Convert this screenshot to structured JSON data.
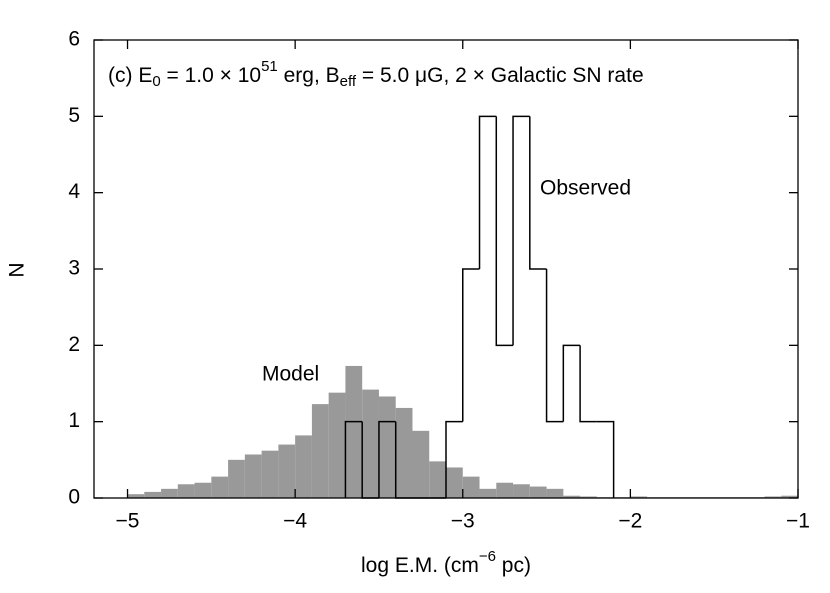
{
  "chart_data": {
    "type": "histogram",
    "annotation": [
      "(c) E",
      "0",
      " = 1.0 × 10",
      "51",
      " erg, B",
      "eff",
      " = 5.0 μG, 2 × Galactic SN rate"
    ],
    "xlabel": [
      "log E.M. (cm",
      "−6",
      " pc)"
    ],
    "ylabel": "N",
    "xlim": [
      -5.2,
      -1
    ],
    "ylim": [
      0,
      6
    ],
    "xticks": [
      {
        "value": -5,
        "label": "−5"
      },
      {
        "value": -4,
        "label": "−4"
      },
      {
        "value": -3,
        "label": "−3"
      },
      {
        "value": -2,
        "label": "−2"
      },
      {
        "value": -1,
        "label": "−1"
      }
    ],
    "yticks": [
      0,
      1,
      2,
      3,
      4,
      5,
      6
    ],
    "series": [
      {
        "name": "Model",
        "color": "#999999",
        "filled": true,
        "bins": [
          -5.0,
          -4.9,
          -4.8,
          -4.7,
          -4.6,
          -4.5,
          -4.4,
          -4.3,
          -4.2,
          -4.1,
          -4.0,
          -3.9,
          -3.8,
          -3.7,
          -3.6,
          -3.5,
          -3.4,
          -3.3,
          -3.2,
          -3.1,
          -3.0,
          -2.9,
          -2.8,
          -2.7,
          -2.6,
          -2.5,
          -2.4,
          -2.3,
          -2.2,
          -2.1,
          -2.0,
          -1.9,
          -1.8,
          -1.7,
          -1.6,
          -1.5,
          -1.4,
          -1.3,
          -1.2,
          -1.1,
          -1.0
        ],
        "values": [
          0.05,
          0.08,
          0.12,
          0.18,
          0.2,
          0.28,
          0.5,
          0.57,
          0.62,
          0.7,
          0.82,
          1.23,
          1.38,
          1.73,
          1.42,
          1.33,
          1.18,
          0.88,
          0.48,
          0.4,
          0.28,
          0.12,
          0.2,
          0.18,
          0.15,
          0.12,
          0.03,
          0.02,
          0.01,
          0.01,
          0.02,
          0.01,
          0.01,
          0.01,
          0.01,
          0.01,
          0.01,
          0.01,
          0.02,
          0.03
        ]
      },
      {
        "name": "Observed",
        "color": "#000000",
        "filled": false,
        "bins": [
          -3.7,
          -3.6,
          -3.5,
          -3.4,
          -3.3,
          -3.2,
          -3.1,
          -3.0,
          -2.9,
          -2.8,
          -2.7,
          -2.6,
          -2.5,
          -2.4,
          -2.3,
          -2.2,
          -2.1
        ],
        "values": [
          1,
          0,
          1,
          0,
          0,
          0,
          1,
          3,
          5,
          2,
          5,
          3,
          1,
          2,
          1,
          1
        ]
      }
    ]
  }
}
